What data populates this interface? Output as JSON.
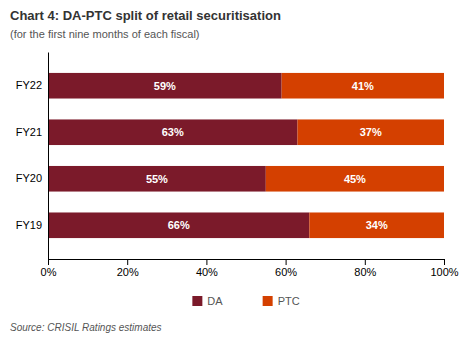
{
  "chart_data": {
    "type": "bar",
    "orientation": "horizontal",
    "stacked": true,
    "title": "Chart 4: DA-PTC split of retail securitisation",
    "subtitle": "(for the first nine months of each fiscal)",
    "annotations": [
      "Source: CRISIL Ratings estimates"
    ],
    "categories": [
      "FY22",
      "FY21",
      "FY20",
      "FY19"
    ],
    "series": [
      {
        "name": "DA",
        "color": "#7B1A2A",
        "values": [
          59,
          63,
          55,
          66
        ],
        "value_labels": [
          "59%",
          "63%",
          "55%",
          "66%"
        ]
      },
      {
        "name": "PTC",
        "color": "#D44000",
        "values": [
          41,
          37,
          45,
          34
        ],
        "value_labels": [
          "41%",
          "37%",
          "45%",
          "34%"
        ]
      }
    ],
    "xlim": [
      0,
      100
    ],
    "xticks": [
      {
        "value": 0,
        "label": "0%"
      },
      {
        "value": 20,
        "label": "20%"
      },
      {
        "value": 40,
        "label": "40%"
      },
      {
        "value": 60,
        "label": "60%"
      },
      {
        "value": 80,
        "label": "80%"
      },
      {
        "value": 100,
        "label": "100%"
      }
    ],
    "data_labels": true,
    "legend": "bottom",
    "grid": false
  }
}
